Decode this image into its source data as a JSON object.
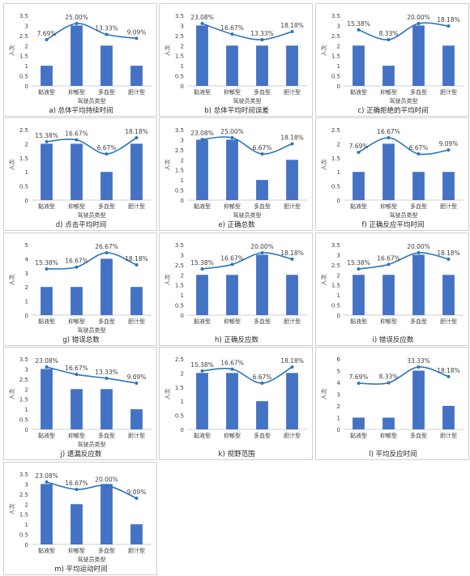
{
  "colors": {
    "bar": "#4472c4",
    "line": "#2e75b6",
    "axis": "#bfbfbf",
    "text": "#404040"
  },
  "chart_data": [
    {
      "type": "bar",
      "caption": "a) 总体平均持续时间",
      "xlabel": "驾驶员类型",
      "ylabel": "人次",
      "categories": [
        "黏液型",
        "抑郁型",
        "多血型",
        "胆汁型"
      ],
      "yticks": [
        "0",
        "0.5",
        "1",
        "1.5",
        "2",
        "2.5",
        "3",
        "3.5"
      ],
      "ylim": [
        0,
        3.5
      ],
      "values": [
        1,
        3,
        2,
        1
      ],
      "line_labels": [
        "7.69%",
        "25.00%",
        "13.33%",
        "9.09%"
      ],
      "line_values": [
        7.69,
        25.0,
        13.33,
        9.09
      ]
    },
    {
      "type": "bar",
      "caption": "b) 总体平均时间误差",
      "xlabel": "驾驶员类型",
      "ylabel": "人次",
      "categories": [
        "黏液型",
        "抑郁型",
        "多血型",
        "胆汁型"
      ],
      "yticks": [
        "0",
        "0.5",
        "1",
        "1.5",
        "2",
        "2.5",
        "3",
        "3.5"
      ],
      "ylim": [
        0,
        3.5
      ],
      "values": [
        3,
        2,
        2,
        2
      ],
      "line_labels": [
        "23.08%",
        "16.67%",
        "13.33%",
        "18.18%"
      ],
      "line_values": [
        23.08,
        16.67,
        13.33,
        18.18
      ]
    },
    {
      "type": "bar",
      "caption": "c) 正确拒绝的平均时间",
      "xlabel": "驾驶员类型",
      "ylabel": "人次",
      "categories": [
        "黏液型",
        "抑郁型",
        "多血型",
        "胆汁型"
      ],
      "yticks": [
        "0",
        "0.5",
        "1",
        "1.5",
        "2",
        "2.5",
        "3",
        "3.5"
      ],
      "ylim": [
        0,
        3.5
      ],
      "values": [
        2,
        1,
        3,
        2
      ],
      "line_labels": [
        "15.38%",
        "8.33%",
        "20.00%",
        "18.18%"
      ],
      "line_values": [
        15.38,
        8.33,
        20.0,
        18.18
      ]
    },
    {
      "type": "bar",
      "caption": "d) 点击平均时间",
      "xlabel": "驾驶员类型",
      "ylabel": "人次",
      "categories": [
        "黏液型",
        "抑郁型",
        "多血型",
        "胆汁型"
      ],
      "yticks": [
        "0",
        "0.5",
        "1",
        "1.5",
        "2",
        "2.5"
      ],
      "ylim": [
        0,
        2.5
      ],
      "values": [
        2,
        2,
        1,
        2
      ],
      "line_labels": [
        "15.38%",
        "16.67%",
        "6.67%",
        "18.18%"
      ],
      "line_values": [
        15.38,
        16.67,
        6.67,
        18.18
      ]
    },
    {
      "type": "bar",
      "caption": "e) 正确总数",
      "xlabel": "驾驶员类型",
      "ylabel": "人次",
      "categories": [
        "黏液型",
        "抑郁型",
        "多血型",
        "胆汁型"
      ],
      "yticks": [
        "0",
        "0.5",
        "1",
        "1.5",
        "2",
        "2.5",
        "3",
        "3.5"
      ],
      "ylim": [
        0,
        3.5
      ],
      "values": [
        3,
        3,
        1,
        2
      ],
      "line_labels": [
        "23.08%",
        "25.00%",
        "6.67%",
        "18.18%"
      ],
      "line_values": [
        23.08,
        25.0,
        6.67,
        18.18
      ]
    },
    {
      "type": "bar",
      "caption": "f) 正确反应平均时间",
      "xlabel": "驾驶员类型",
      "ylabel": "人次",
      "categories": [
        "黏液型",
        "抑郁型",
        "多血型",
        "胆汁型"
      ],
      "yticks": [
        "0",
        "0.5",
        "1",
        "1.5",
        "2",
        "2.5"
      ],
      "ylim": [
        0,
        2.5
      ],
      "values": [
        1,
        2,
        1,
        1
      ],
      "line_labels": [
        "7.69%",
        "16.67%",
        "6.67%",
        "9.09%"
      ],
      "line_values": [
        7.69,
        16.67,
        6.67,
        9.09
      ]
    },
    {
      "type": "bar",
      "caption": "g) 错误总数",
      "xlabel": "驾驶员类型",
      "ylabel": "人次",
      "categories": [
        "黏液型",
        "抑郁型",
        "多血型",
        "胆汁型"
      ],
      "yticks": [
        "0",
        "1",
        "2",
        "3",
        "4",
        "5"
      ],
      "ylim": [
        0,
        5
      ],
      "values": [
        2,
        2,
        4,
        2
      ],
      "line_labels": [
        "15.38%",
        "16.67%",
        "26.67%",
        "18.18%"
      ],
      "line_values": [
        15.38,
        16.67,
        26.67,
        18.18
      ]
    },
    {
      "type": "bar",
      "caption": "h) 正确反应数",
      "xlabel": "",
      "ylabel": "人次",
      "categories": [
        "黏液型",
        "抑郁型",
        "多血型",
        "胆汁型"
      ],
      "yticks": [
        "0",
        "0.5",
        "1",
        "1.5",
        "2",
        "2.5",
        "3",
        "3.5"
      ],
      "ylim": [
        0,
        3.5
      ],
      "values": [
        2,
        2,
        3,
        2
      ],
      "line_labels": [
        "15.38%",
        "16.67%",
        "20.00%",
        "18.18%"
      ],
      "line_values": [
        15.38,
        16.67,
        20.0,
        18.18
      ]
    },
    {
      "type": "bar",
      "caption": "i) 错误反应数",
      "xlabel": "",
      "ylabel": "人次",
      "categories": [
        "黏液型",
        "抑郁型",
        "多血型",
        "胆汁型"
      ],
      "yticks": [
        "0",
        "0.5",
        "1",
        "1.5",
        "2",
        "2.5",
        "3",
        "3.5"
      ],
      "ylim": [
        0,
        3.5
      ],
      "values": [
        2,
        2,
        3,
        2
      ],
      "line_labels": [
        "15.38%",
        "16.67%",
        "20.00%",
        "18.18%"
      ],
      "line_values": [
        15.38,
        16.67,
        20.0,
        18.18
      ]
    },
    {
      "type": "bar",
      "caption": "j) 遗漏反应数",
      "xlabel": "驾驶员类型",
      "ylabel": "人次",
      "categories": [
        "黏液型",
        "抑郁型",
        "多血型",
        "胆汁型"
      ],
      "yticks": [
        "0",
        "0.5",
        "1",
        "1.5",
        "2",
        "2.5",
        "3",
        "3.5"
      ],
      "ylim": [
        0,
        3.5
      ],
      "values": [
        3,
        2,
        2,
        1
      ],
      "line_labels": [
        "23.08%",
        "16.67%",
        "13.33%",
        "9.09%"
      ],
      "line_values": [
        23.08,
        16.67,
        13.33,
        9.09
      ]
    },
    {
      "type": "bar",
      "caption": "k) 视野范围",
      "xlabel": "",
      "ylabel": "人次",
      "categories": [
        "黏液型",
        "抑郁型",
        "多血型",
        "胆汁型"
      ],
      "yticks": [
        "0",
        "0.5",
        "1",
        "1.5",
        "2",
        "2.5"
      ],
      "ylim": [
        0,
        2.5
      ],
      "values": [
        2,
        2,
        1,
        2
      ],
      "line_labels": [
        "15.38%",
        "16.67%",
        "6.67%",
        "18.18%"
      ],
      "line_values": [
        15.38,
        16.67,
        6.67,
        18.18
      ]
    },
    {
      "type": "bar",
      "caption": "l) 平均反应时间",
      "xlabel": "",
      "ylabel": "人次",
      "categories": [
        "黏液型",
        "抑郁型",
        "多血型",
        "胆汁型"
      ],
      "yticks": [
        "0",
        "1",
        "2",
        "3",
        "4",
        "5",
        "6"
      ],
      "ylim": [
        0,
        6
      ],
      "values": [
        1,
        1,
        5,
        2
      ],
      "line_labels": [
        "7.69%",
        "8.33%",
        "33.33%",
        "18.18%"
      ],
      "line_values": [
        7.69,
        8.33,
        33.33,
        18.18
      ]
    },
    {
      "type": "bar",
      "caption": "m) 平均运动时间",
      "xlabel": "驾驶员类型",
      "ylabel": "人次",
      "categories": [
        "黏液型",
        "抑郁型",
        "多血型",
        "胆汁型"
      ],
      "yticks": [
        "0",
        "0.5",
        "1",
        "1.5",
        "2",
        "2.5",
        "3",
        "3.5"
      ],
      "ylim": [
        0,
        3.5
      ],
      "values": [
        3,
        2,
        3,
        1
      ],
      "line_labels": [
        "23.08%",
        "16.67%",
        "20.00%",
        "9.09%"
      ],
      "line_values": [
        23.08,
        16.67,
        20.0,
        9.09
      ]
    }
  ]
}
